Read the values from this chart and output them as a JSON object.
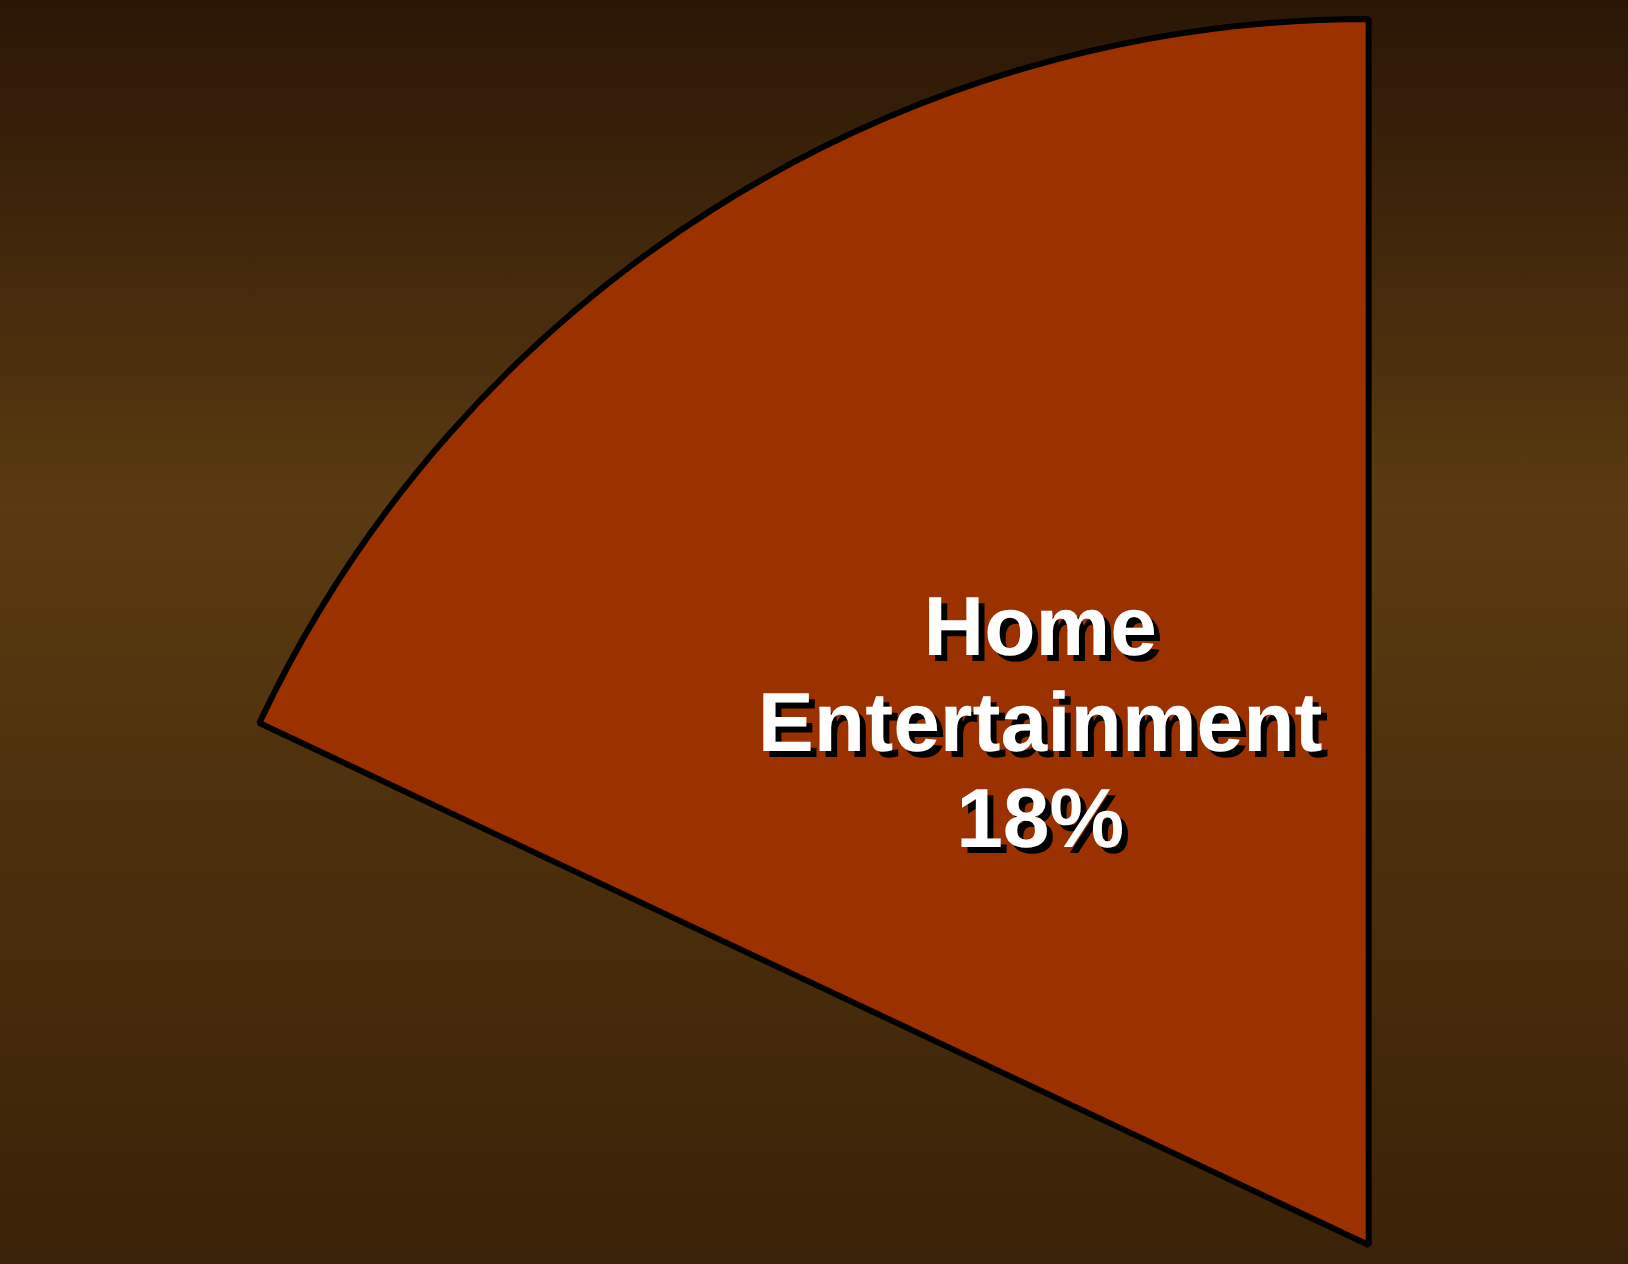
{
  "chart_data": {
    "type": "pie",
    "categories": [
      "Home Entertainment"
    ],
    "values": [
      18
    ],
    "colors": [
      "#9c3100"
    ],
    "value_labels": [
      "18%"
    ],
    "legend": false
  }
}
